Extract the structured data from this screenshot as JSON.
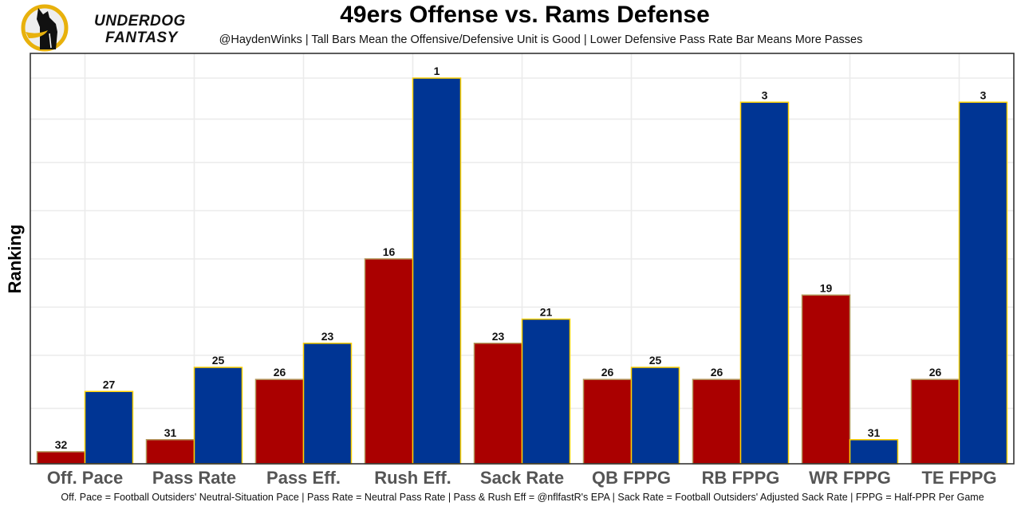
{
  "branding": {
    "logo_line1": "UNDERDOG",
    "logo_line2": "FANTASY",
    "logo_icon": "dog-silhouette-icon",
    "logo_ring_color": "#E8B10C"
  },
  "chart_data": {
    "type": "bar",
    "title": "49ers Offense vs. Rams Defense",
    "subtitle": "@HaydenWinks | Tall Bars Mean the Offensive/Defensive Unit is Good | Lower Defensive Pass Rate Bar Means More Passes",
    "xlabel": "",
    "ylabel": "Ranking",
    "caption": "Off. Pace = Football Outsiders' Neutral-Situation Pace | Pass Rate = Neutral Pass Rate | Pass & Rush Eff = @nflfastR's EPA | Sack Rate = Football Outsiders' Adjusted Sack Rate | FPPG = Half-PPR Per Game",
    "categories": [
      "Off. Pace",
      "Pass Rate",
      "Pass Eff.",
      "Rush Eff.",
      "Sack Rate",
      "QB FPPG",
      "RB FPPG",
      "WR FPPG",
      "TE FPPG"
    ],
    "bar_height_rule": "height = 33 - rank (rank 1 is tallest)",
    "series": [
      {
        "name": "49ers Offense",
        "color": "#AA0000",
        "border": "#B3995D",
        "values": [
          32,
          31,
          26,
          16,
          23,
          26,
          26,
          19,
          26
        ]
      },
      {
        "name": "Rams Defense",
        "color": "#003594",
        "border": "#FFD100",
        "values": [
          27,
          25,
          23,
          1,
          21,
          25,
          3,
          31,
          3
        ]
      }
    ],
    "ylim": [
      0,
      34
    ],
    "y_ticks_shown": false,
    "grid": true,
    "gridlines_y": [
      4.6,
      9,
      13,
      17,
      21,
      25,
      28.6,
      32
    ],
    "legend": "none"
  }
}
